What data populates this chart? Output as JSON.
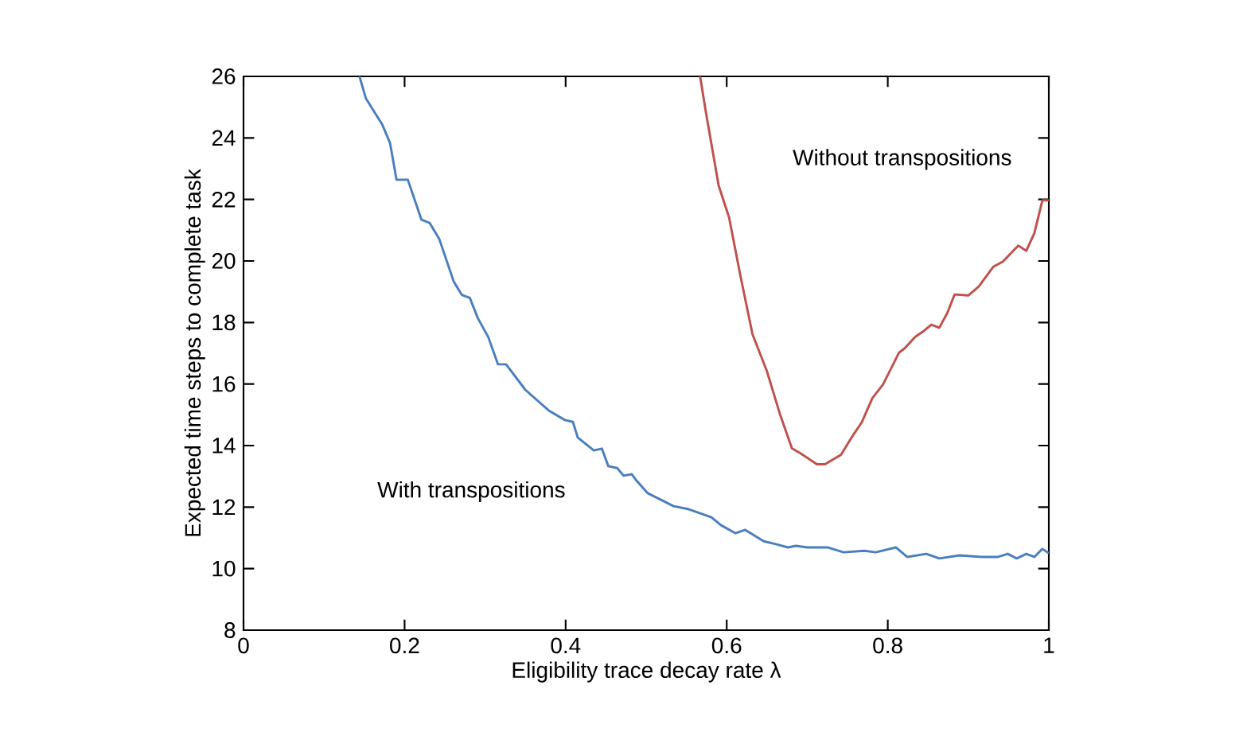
{
  "chart_data": {
    "type": "line",
    "xlabel": "Eligibility trace decay rate λ",
    "ylabel": "Expected time steps to complete task",
    "xlim": [
      0,
      1
    ],
    "ylim": [
      8,
      26
    ],
    "xticks": [
      0,
      0.2,
      0.4,
      0.6,
      0.8,
      1
    ],
    "yticks": [
      8,
      10,
      12,
      14,
      16,
      18,
      20,
      22,
      24,
      26
    ],
    "grid": false,
    "legend": false,
    "series": [
      {
        "name": "With transpositions",
        "color": "#4a7ebf",
        "x": [
          0.144,
          0.152,
          0.162,
          0.172,
          0.182,
          0.19,
          0.204,
          0.221,
          0.231,
          0.243,
          0.261,
          0.271,
          0.281,
          0.291,
          0.304,
          0.316,
          0.326,
          0.35,
          0.379,
          0.399,
          0.409,
          0.415,
          0.435,
          0.445,
          0.453,
          0.464,
          0.472,
          0.482,
          0.488,
          0.502,
          0.534,
          0.553,
          0.581,
          0.593,
          0.611,
          0.623,
          0.646,
          0.662,
          0.676,
          0.686,
          0.7,
          0.725,
          0.745,
          0.771,
          0.785,
          0.81,
          0.824,
          0.848,
          0.864,
          0.889,
          0.917,
          0.937,
          0.949,
          0.96,
          0.972,
          0.982,
          0.992,
          1.0
        ],
        "values": [
          26,
          25.28,
          24.86,
          24.45,
          23.83,
          22.64,
          22.64,
          21.34,
          21.24,
          20.72,
          19.33,
          18.9,
          18.8,
          18.14,
          17.52,
          16.64,
          16.64,
          15.81,
          15.14,
          14.83,
          14.77,
          14.26,
          13.84,
          13.9,
          13.33,
          13.27,
          13.02,
          13.07,
          12.86,
          12.45,
          12.03,
          11.93,
          11.67,
          11.41,
          11.15,
          11.26,
          10.89,
          10.79,
          10.69,
          10.74,
          10.69,
          10.69,
          10.53,
          10.58,
          10.53,
          10.69,
          10.38,
          10.48,
          10.33,
          10.43,
          10.38,
          10.38,
          10.48,
          10.33,
          10.48,
          10.38,
          10.64,
          10.5
        ]
      },
      {
        "name": "Without transpositions",
        "color": "#c0504d",
        "x": [
          0.567,
          0.574,
          0.59,
          0.603,
          0.617,
          0.632,
          0.65,
          0.666,
          0.681,
          0.692,
          0.712,
          0.722,
          0.742,
          0.755,
          0.768,
          0.781,
          0.794,
          0.804,
          0.814,
          0.821,
          0.834,
          0.844,
          0.854,
          0.864,
          0.874,
          0.883,
          0.9,
          0.913,
          0.931,
          0.943,
          0.962,
          0.972,
          0.982,
          0.992,
          1.0
        ],
        "values": [
          26,
          24.86,
          22.45,
          21.41,
          19.52,
          17.62,
          16.41,
          15.03,
          13.91,
          13.74,
          13.39,
          13.39,
          13.7,
          14.26,
          14.77,
          15.55,
          15.98,
          16.5,
          17.02,
          17.16,
          17.53,
          17.71,
          17.93,
          17.83,
          18.31,
          18.91,
          18.88,
          19.17,
          19.81,
          19.98,
          20.5,
          20.33,
          20.9,
          21.97,
          21.97
        ]
      }
    ]
  }
}
